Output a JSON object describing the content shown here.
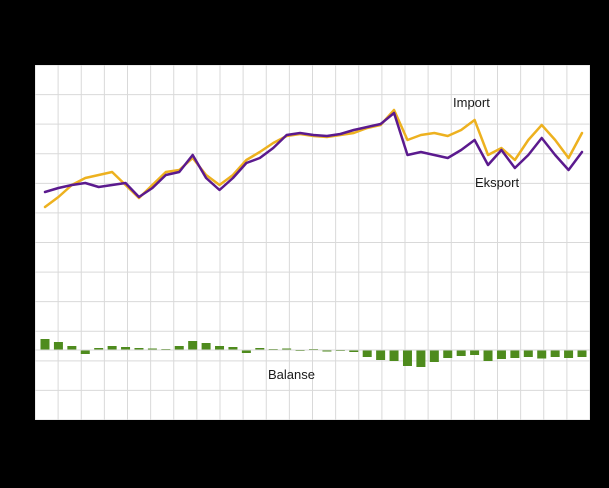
{
  "chart_data": {
    "type": "line",
    "title": "",
    "xlabel": "",
    "ylabel": "",
    "x_axis": {
      "labels_visible": false
    },
    "y_axis": {
      "labels_visible": false
    },
    "grid": true,
    "grid_counts": {
      "x": 24,
      "y": 12
    },
    "ylim": [
      -70,
      285
    ],
    "x": [
      1,
      2,
      3,
      4,
      5,
      6,
      7,
      8,
      9,
      10,
      11,
      12,
      13,
      14,
      15,
      16,
      17,
      18,
      19,
      20,
      21,
      22,
      23,
      24,
      25,
      26,
      27,
      28,
      29,
      30,
      31,
      32,
      33,
      34,
      35,
      36,
      37,
      38,
      39,
      40,
      41
    ],
    "series": [
      {
        "name": "Import",
        "type": "line",
        "color": "#edb11f",
        "values": [
          143,
          153,
          165,
          172,
          175,
          178,
          165,
          152,
          165,
          178,
          180,
          192,
          175,
          165,
          175,
          190,
          198,
          207,
          214,
          216,
          214,
          213,
          215,
          217,
          222,
          225,
          240,
          210,
          215,
          217,
          214,
          220,
          230,
          195,
          202,
          190,
          210,
          225,
          210,
          192,
          217
        ]
      },
      {
        "name": "Eksport",
        "type": "line",
        "color": "#5b1a8e",
        "values": [
          158,
          162,
          165,
          167,
          163,
          165,
          167,
          153,
          162,
          175,
          178,
          195,
          172,
          160,
          172,
          187,
          192,
          202,
          215,
          217,
          215,
          214,
          216,
          220,
          223,
          226,
          237,
          195,
          198,
          195,
          192,
          200,
          210,
          185,
          200,
          182,
          195,
          212,
          195,
          180,
          198
        ]
      },
      {
        "name": "Balanse",
        "type": "bar",
        "color": "#4e8b1d",
        "values": [
          11,
          8,
          4,
          -4,
          2,
          4,
          3,
          2,
          1.5,
          1,
          4,
          9,
          7,
          4,
          3,
          -3,
          2,
          1,
          1.5,
          -1,
          1,
          -1.5,
          -1,
          -2,
          -7,
          -10,
          -11,
          -16,
          -17,
          -12,
          -8,
          -6,
          -5,
          -11,
          -9,
          -8,
          -7,
          -8.5,
          -7,
          -8,
          -7
        ]
      }
    ],
    "annotations": {
      "import_label": "Import",
      "eksport_label": "Eksport",
      "balanse_label": "Balanse"
    },
    "colors": {
      "background": "#000000",
      "plot_background": "#ffffff",
      "gridline": "#d9d9d9"
    },
    "legend_position": "inline-annotations"
  }
}
